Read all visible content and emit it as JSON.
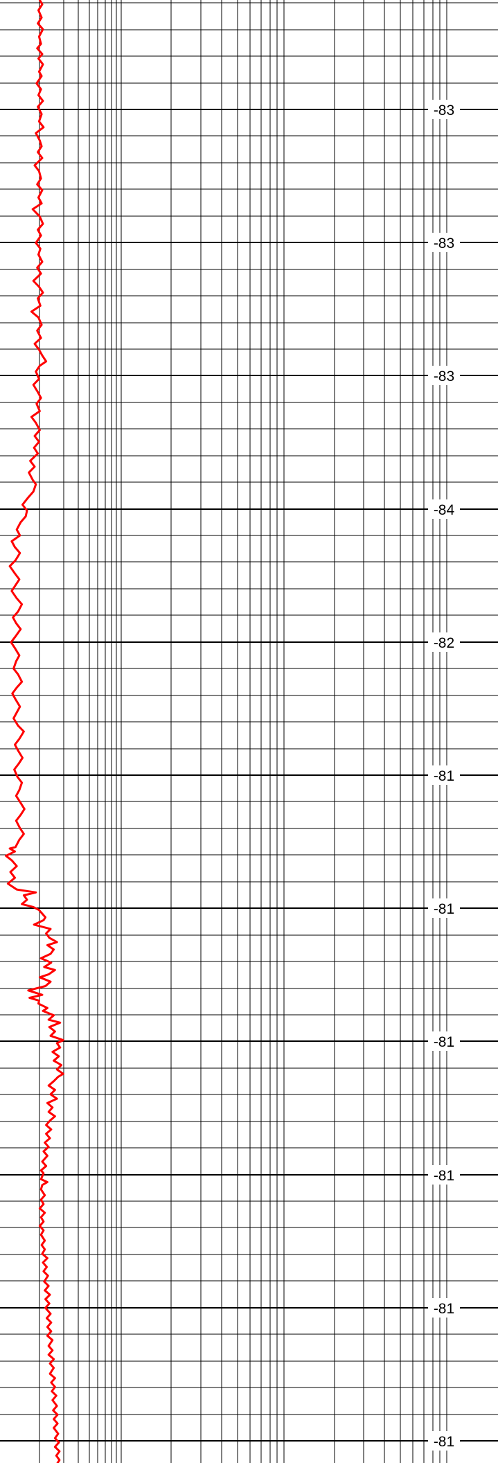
{
  "chart_data": {
    "type": "line",
    "title": "",
    "xlabel": "",
    "ylabel": "",
    "x_scale": "log",
    "grid": true,
    "series_color": "#ff0000",
    "depth_labels": [
      "-83",
      "-83",
      "-83",
      "-84",
      "-82",
      "-81",
      "-81",
      "-81",
      "-81",
      "-81",
      "-81"
    ],
    "series": [
      {
        "points": [
          [
            0.0,
            58
          ],
          [
            0.3,
            62
          ],
          [
            0.7,
            56
          ],
          [
            1.2,
            61
          ],
          [
            1.6,
            55
          ],
          [
            2.0,
            63
          ],
          [
            2.5,
            57
          ],
          [
            3.0,
            60
          ],
          [
            3.3,
            54
          ],
          [
            3.7,
            62
          ],
          [
            4.0,
            56
          ],
          [
            4.4,
            63
          ],
          [
            4.9,
            57
          ],
          [
            5.2,
            61
          ],
          [
            5.7,
            53
          ],
          [
            6.1,
            60
          ],
          [
            6.5,
            56
          ],
          [
            6.9,
            63
          ],
          [
            7.3,
            55
          ],
          [
            7.8,
            61
          ],
          [
            8.3,
            57
          ],
          [
            8.7,
            64
          ],
          [
            9.1,
            52
          ],
          [
            9.6,
            58
          ],
          [
            10.0,
            61
          ],
          [
            10.4,
            55
          ],
          [
            10.8,
            62
          ],
          [
            11.3,
            50
          ],
          [
            11.7,
            57
          ],
          [
            12.2,
            60
          ],
          [
            12.6,
            54
          ],
          [
            13.0,
            62
          ],
          [
            13.5,
            56
          ],
          [
            13.9,
            61
          ],
          [
            14.3,
            47
          ],
          [
            14.8,
            58
          ],
          [
            15.3,
            63
          ],
          [
            15.7,
            55
          ],
          [
            16.1,
            60
          ],
          [
            16.6,
            52
          ],
          [
            17.0,
            59
          ],
          [
            17.4,
            56
          ],
          [
            17.9,
            62
          ],
          [
            18.3,
            54
          ],
          [
            18.7,
            60
          ],
          [
            19.2,
            48
          ],
          [
            19.6,
            57
          ],
          [
            20.0,
            63
          ],
          [
            20.4,
            55
          ],
          [
            20.9,
            59
          ],
          [
            21.3,
            45
          ],
          [
            21.7,
            56
          ],
          [
            22.2,
            61
          ],
          [
            22.6,
            54
          ],
          [
            23.1,
            60
          ],
          [
            23.5,
            50
          ],
          [
            23.9,
            57
          ],
          [
            24.3,
            62
          ],
          [
            24.7,
            68
          ],
          [
            25.0,
            58
          ],
          [
            25.4,
            52
          ],
          [
            25.9,
            57
          ],
          [
            26.3,
            48
          ],
          [
            26.8,
            55
          ],
          [
            27.2,
            60
          ],
          [
            27.6,
            53
          ],
          [
            28.1,
            58
          ],
          [
            28.5,
            45
          ],
          [
            28.9,
            52
          ],
          [
            29.4,
            58
          ],
          [
            29.8,
            50
          ],
          [
            30.2,
            57
          ],
          [
            30.6,
            49
          ],
          [
            31.0,
            55
          ],
          [
            31.5,
            43
          ],
          [
            31.9,
            50
          ],
          [
            32.3,
            41
          ],
          [
            32.8,
            47
          ],
          [
            33.1,
            52
          ],
          [
            33.6,
            48
          ],
          [
            34.0,
            40
          ],
          [
            34.5,
            31
          ],
          [
            34.9,
            38
          ],
          [
            35.3,
            36
          ],
          [
            35.7,
            28
          ],
          [
            36.2,
            22
          ],
          [
            36.6,
            27
          ],
          [
            37.0,
            14
          ],
          [
            37.4,
            19
          ],
          [
            37.8,
            27
          ],
          [
            38.3,
            20
          ],
          [
            38.7,
            11
          ],
          [
            39.2,
            19
          ],
          [
            39.6,
            26
          ],
          [
            40.0,
            20
          ],
          [
            40.4,
            14
          ],
          [
            40.9,
            22
          ],
          [
            41.3,
            30
          ],
          [
            41.8,
            24
          ],
          [
            42.2,
            16
          ],
          [
            42.6,
            21
          ],
          [
            43.0,
            28
          ],
          [
            43.5,
            20
          ],
          [
            43.9,
            13
          ],
          [
            44.3,
            19
          ],
          [
            44.8,
            26
          ],
          [
            45.2,
            21
          ],
          [
            45.7,
            17
          ],
          [
            46.1,
            24
          ],
          [
            46.6,
            30
          ],
          [
            47.0,
            22
          ],
          [
            47.4,
            15
          ],
          [
            47.8,
            20
          ],
          [
            48.3,
            27
          ],
          [
            48.7,
            22
          ],
          [
            49.1,
            17
          ],
          [
            49.6,
            24
          ],
          [
            50.0,
            33
          ],
          [
            50.5,
            26
          ],
          [
            50.9,
            19
          ],
          [
            51.3,
            24
          ],
          [
            51.8,
            31
          ],
          [
            52.2,
            25
          ],
          [
            52.6,
            18
          ],
          [
            53.1,
            23
          ],
          [
            53.5,
            30
          ],
          [
            54.0,
            26
          ],
          [
            54.4,
            21
          ],
          [
            54.8,
            27
          ],
          [
            55.3,
            34
          ],
          [
            55.7,
            28
          ],
          [
            56.1,
            21
          ],
          [
            56.6,
            27
          ],
          [
            57.0,
            33
          ],
          [
            57.4,
            26
          ],
          [
            57.9,
            20
          ],
          [
            58.0,
            11
          ],
          [
            58.2,
            19
          ],
          [
            58.5,
            5
          ],
          [
            58.8,
            14
          ],
          [
            59.2,
            22
          ],
          [
            59.6,
            12
          ],
          [
            60.0,
            19
          ],
          [
            60.4,
            8
          ],
          [
            60.8,
            22
          ],
          [
            61.0,
            52
          ],
          [
            61.2,
            33
          ],
          [
            61.5,
            38
          ],
          [
            61.8,
            30
          ],
          [
            62.0,
            48
          ],
          [
            62.2,
            57
          ],
          [
            62.7,
            67
          ],
          [
            62.9,
            64
          ],
          [
            63.2,
            49
          ],
          [
            63.5,
            75
          ],
          [
            63.8,
            68
          ],
          [
            64.1,
            73
          ],
          [
            64.4,
            85
          ],
          [
            64.6,
            70
          ],
          [
            64.9,
            80
          ],
          [
            65.2,
            75
          ],
          [
            65.5,
            60
          ],
          [
            65.8,
            76
          ],
          [
            66.1,
            65
          ],
          [
            66.3,
            82
          ],
          [
            66.6,
            72
          ],
          [
            66.8,
            58
          ],
          [
            67.1,
            75
          ],
          [
            67.4,
            67
          ],
          [
            67.7,
            40
          ],
          [
            68.0,
            62
          ],
          [
            68.2,
            42
          ],
          [
            68.4,
            57
          ],
          [
            68.6,
            56
          ],
          [
            68.9,
            70
          ],
          [
            69.1,
            63
          ],
          [
            69.4,
            80
          ],
          [
            69.7,
            72
          ],
          [
            69.9,
            90
          ],
          [
            70.2,
            73
          ],
          [
            70.5,
            82
          ],
          [
            70.8,
            75
          ],
          [
            71.1,
            95
          ],
          [
            71.3,
            85
          ],
          [
            71.6,
            90
          ],
          [
            71.9,
            78
          ],
          [
            72.2,
            88
          ],
          [
            72.5,
            80
          ],
          [
            72.8,
            92
          ],
          [
            73.1,
            85
          ],
          [
            73.4,
            95
          ],
          [
            73.6,
            87
          ],
          [
            73.9,
            80
          ],
          [
            74.2,
            72
          ],
          [
            74.5,
            82
          ],
          [
            74.8,
            75
          ],
          [
            75.1,
            85
          ],
          [
            75.4,
            70
          ],
          [
            75.7,
            78
          ],
          [
            76.0,
            72
          ],
          [
            76.3,
            82
          ],
          [
            76.6,
            74
          ],
          [
            76.9,
            68
          ],
          [
            77.2,
            76
          ],
          [
            77.5,
            68
          ],
          [
            77.8,
            74
          ],
          [
            78.1,
            66
          ],
          [
            78.4,
            72
          ],
          [
            78.7,
            64
          ],
          [
            79.0,
            70
          ],
          [
            79.4,
            62
          ],
          [
            79.7,
            68
          ],
          [
            80.0,
            60
          ],
          [
            80.2,
            64
          ],
          [
            80.6,
            60
          ],
          [
            80.8,
            70
          ],
          [
            81.0,
            62
          ],
          [
            81.3,
            60
          ],
          [
            81.7,
            66
          ],
          [
            82.0,
            60
          ],
          [
            82.3,
            64
          ],
          [
            82.6,
            58
          ],
          [
            82.9,
            66
          ],
          [
            83.2,
            60
          ],
          [
            83.5,
            64
          ],
          [
            83.8,
            58
          ],
          [
            84.1,
            64
          ],
          [
            84.4,
            60
          ],
          [
            84.8,
            66
          ],
          [
            85.1,
            61
          ],
          [
            85.4,
            66
          ],
          [
            85.7,
            62
          ],
          [
            86.0,
            70
          ],
          [
            86.3,
            63
          ],
          [
            86.6,
            69
          ],
          [
            86.9,
            64
          ],
          [
            87.2,
            71
          ],
          [
            87.6,
            65
          ],
          [
            87.9,
            72
          ],
          [
            88.2,
            66
          ],
          [
            88.5,
            74
          ],
          [
            88.8,
            67
          ],
          [
            89.1,
            73
          ],
          [
            89.4,
            67
          ],
          [
            89.8,
            75
          ],
          [
            90.1,
            69
          ],
          [
            90.4,
            76
          ],
          [
            90.7,
            70
          ],
          [
            91.0,
            76
          ],
          [
            91.3,
            70
          ],
          [
            91.6,
            78
          ],
          [
            92.0,
            72
          ],
          [
            92.3,
            78
          ],
          [
            92.6,
            72
          ],
          [
            92.9,
            80
          ],
          [
            93.2,
            74
          ],
          [
            93.5,
            80
          ],
          [
            93.9,
            74
          ],
          [
            94.2,
            82
          ],
          [
            94.5,
            76
          ],
          [
            94.8,
            82
          ],
          [
            95.1,
            77
          ],
          [
            95.4,
            84
          ],
          [
            95.7,
            78
          ],
          [
            96.1,
            85
          ],
          [
            96.4,
            79
          ],
          [
            96.7,
            86
          ],
          [
            97.0,
            80
          ],
          [
            97.3,
            86
          ],
          [
            97.6,
            80
          ],
          [
            98.0,
            87
          ],
          [
            98.3,
            82
          ],
          [
            98.6,
            88
          ],
          [
            98.9,
            82
          ],
          [
            99.2,
            89
          ],
          [
            99.5,
            84
          ],
          [
            99.8,
            89
          ],
          [
            100.0,
            86
          ]
        ]
      }
    ]
  }
}
